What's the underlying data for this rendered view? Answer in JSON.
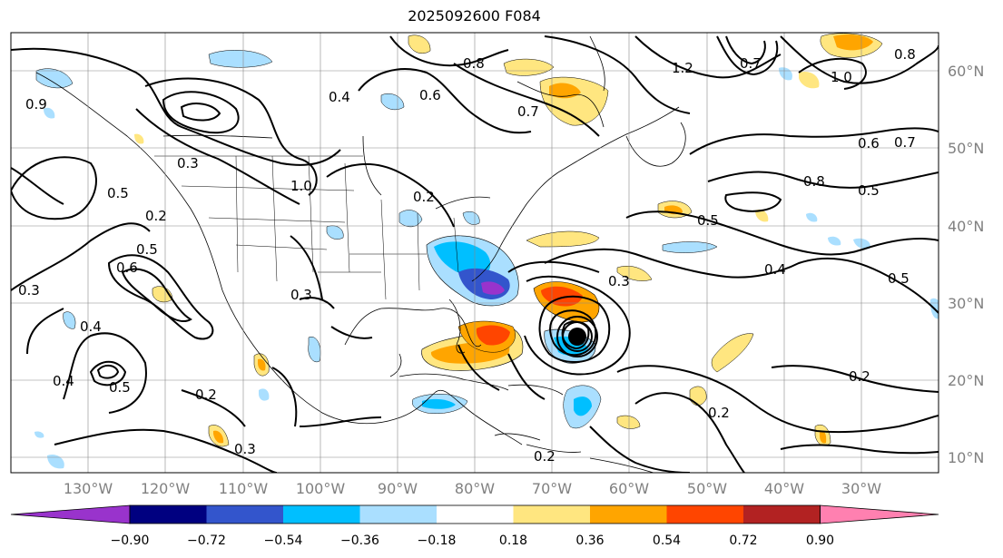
{
  "title": "2025092600 F084",
  "lat_labels": [
    "60°N",
    "50°N",
    "40°N",
    "30°N",
    "20°N",
    "10°N"
  ],
  "lon_labels": [
    "130°W",
    "120°W",
    "110°W",
    "100°W",
    "90°W",
    "80°W",
    "70°W",
    "60°W",
    "50°W",
    "40°W",
    "30°W"
  ],
  "colorbar": {
    "ticks": [
      "−0.90",
      "−0.72",
      "−0.54",
      "−0.36",
      "−0.18",
      "0.18",
      "0.36",
      "0.54",
      "0.72",
      "0.90"
    ],
    "colors": [
      "#9933cc",
      "#000080",
      "#3355cc",
      "#00bfff",
      "#aadfff",
      "#ffffff",
      "#ffe680",
      "#ffa500",
      "#ff4500",
      "#b22222",
      "#ff80b0"
    ]
  },
  "contour_labels": [
    "0.3",
    "0.9",
    "0.5",
    "0.3",
    "0.2",
    "0.5",
    "0.6",
    "0.4",
    "0.5",
    "0.4",
    "0.2",
    "0.3",
    "0.2",
    "0.8",
    "0.6",
    "0.4",
    "1.0",
    "0.7",
    "1.2",
    "0.7",
    "1.0",
    "0.8",
    "0.6",
    "0.7",
    "0.8",
    "0.5",
    "0.4",
    "0.5",
    "0.3",
    "0.2",
    "0.2",
    "0.2",
    "0.5",
    "0.3"
  ]
}
